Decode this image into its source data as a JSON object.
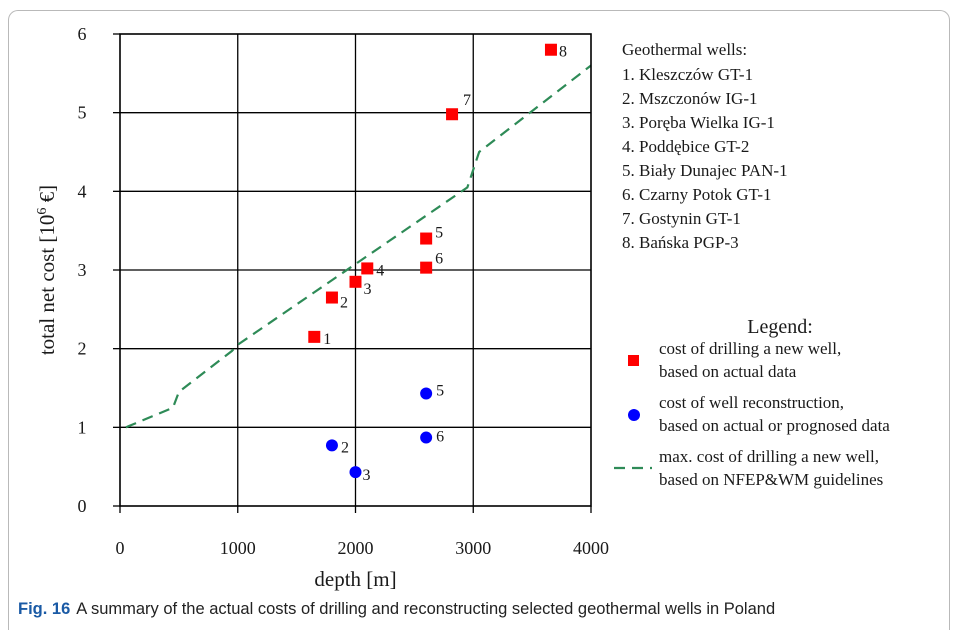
{
  "chart_data": {
    "type": "scatter",
    "xlabel": "depth [m]",
    "ylabel_main": "total net cost [10",
    "ylabel_sup": "6",
    "ylabel_end": " €]",
    "xlim": [
      0,
      4000
    ],
    "ylim": [
      0,
      6
    ],
    "xticks": [
      0,
      1000,
      2000,
      3000,
      4000
    ],
    "yticks": [
      0,
      1,
      2,
      3,
      4,
      5,
      6
    ],
    "grid": true,
    "series": [
      {
        "name": "cost of drilling a new well, based on actual data",
        "marker": "square",
        "color": "#ff0000",
        "points": [
          {
            "x": 1650,
            "y": 2.15,
            "label": "1"
          },
          {
            "x": 1800,
            "y": 2.65,
            "label": "2"
          },
          {
            "x": 2000,
            "y": 2.85,
            "label": "3"
          },
          {
            "x": 2100,
            "y": 3.02,
            "label": "4"
          },
          {
            "x": 2600,
            "y": 3.4,
            "label": "5"
          },
          {
            "x": 2600,
            "y": 3.03,
            "label": "6"
          },
          {
            "x": 2820,
            "y": 4.98,
            "label": "7"
          },
          {
            "x": 3660,
            "y": 5.8,
            "label": "8"
          }
        ]
      },
      {
        "name": "cost of well reconstruction, based on actual or prognosed data",
        "marker": "circle",
        "color": "#0000ff",
        "points": [
          {
            "x": 1800,
            "y": 0.77,
            "label": "2"
          },
          {
            "x": 2000,
            "y": 0.43,
            "label": "3"
          },
          {
            "x": 2600,
            "y": 1.43,
            "label": "5"
          },
          {
            "x": 2600,
            "y": 0.87,
            "label": "6"
          }
        ]
      },
      {
        "name": "max. cost of drilling a new well, based on NFEP&WM guidelines",
        "line": "dashed",
        "color": "#2e8b57",
        "points": [
          {
            "x": 50,
            "y": 1.0
          },
          {
            "x": 450,
            "y": 1.25
          },
          {
            "x": 500,
            "y": 1.45
          },
          {
            "x": 950,
            "y": 1.97
          },
          {
            "x": 1000,
            "y": 2.05
          },
          {
            "x": 2950,
            "y": 4.05
          },
          {
            "x": 3050,
            "y": 4.5
          },
          {
            "x": 4000,
            "y": 5.6
          }
        ]
      }
    ],
    "wells_title": "Geothermal wells:",
    "wells": [
      "1. Kleszczów GT-1",
      "2. Mszczonów IG-1",
      "3. Poręba Wielka IG-1",
      "4. Poddębice GT-2",
      "5. Biały Dunajec PAN-1",
      "6. Czarny Potok GT-1",
      "7. Gostynin GT-1",
      "8. Bańska PGP-3"
    ],
    "legend_title": "Legend:",
    "legend_entries": [
      {
        "line1": "cost of drilling a new well,",
        "line2": "based on actual data"
      },
      {
        "line1": "cost of well reconstruction,",
        "line2": "based on actual or prognosed data"
      },
      {
        "line1": "max. cost of drilling a new well,",
        "line2": "based on NFEP&WM guidelines"
      }
    ]
  },
  "caption": {
    "label": "Fig. 16",
    "text": "A summary of the actual costs of drilling and reconstructing selected geothermal wells in Poland"
  }
}
